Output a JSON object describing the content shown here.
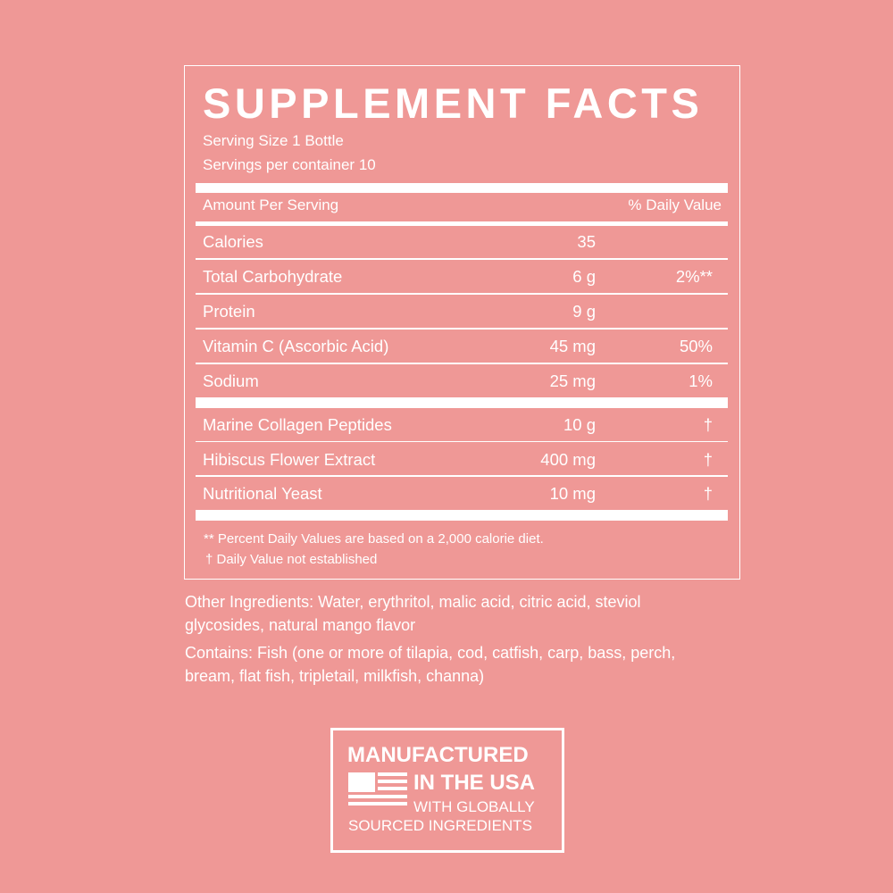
{
  "panel": {
    "title": "SUPPLEMENT FACTS",
    "serving_size": "Serving Size 1 Bottle",
    "servings_per_container": "Servings per container 10",
    "header": {
      "amount": "Amount Per Serving",
      "daily_value": "% Daily Value"
    },
    "nutrients": [
      {
        "name": "Calories",
        "amount": "35"
      },
      {
        "name": "Total Carbohydrate",
        "amount": "6 g",
        "daily_value": "2%**"
      },
      {
        "name": "Protein",
        "amount": "9 g"
      },
      {
        "name": "Vitamin C (Ascorbic Acid)",
        "amount": "45 mg",
        "daily_value": "50%"
      },
      {
        "name": "Sodium",
        "amount": "25 mg",
        "daily_value": "1%"
      }
    ],
    "ingredients": [
      {
        "name": "Marine Collagen Peptides",
        "amount": "10 g",
        "daily_value": "†"
      },
      {
        "name": "Hibiscus Flower Extract",
        "amount": "400 mg",
        "daily_value": "†"
      },
      {
        "name": "Nutritional Yeast",
        "amount": "10 mg",
        "daily_value": "†"
      }
    ],
    "footnotes": [
      "** Percent Daily Values are based on a 2,000 calorie diet.",
      "†  Daily Value not established"
    ]
  },
  "other_ingredients": "Other Ingredients: Water, erythritol, malic acid, citric acid, steviol glycosides, natural mango flavor",
  "contains": "Contains: Fish (one or more of tilapia, cod, catfish, carp, bass, perch, bream, flat fish, tripletail, milkfish, channa)",
  "badge": {
    "line1": "MANUFACTURED",
    "line2": "IN THE USA",
    "line3": "WITH GLOBALLY",
    "line4": "SOURCED INGREDIENTS"
  }
}
